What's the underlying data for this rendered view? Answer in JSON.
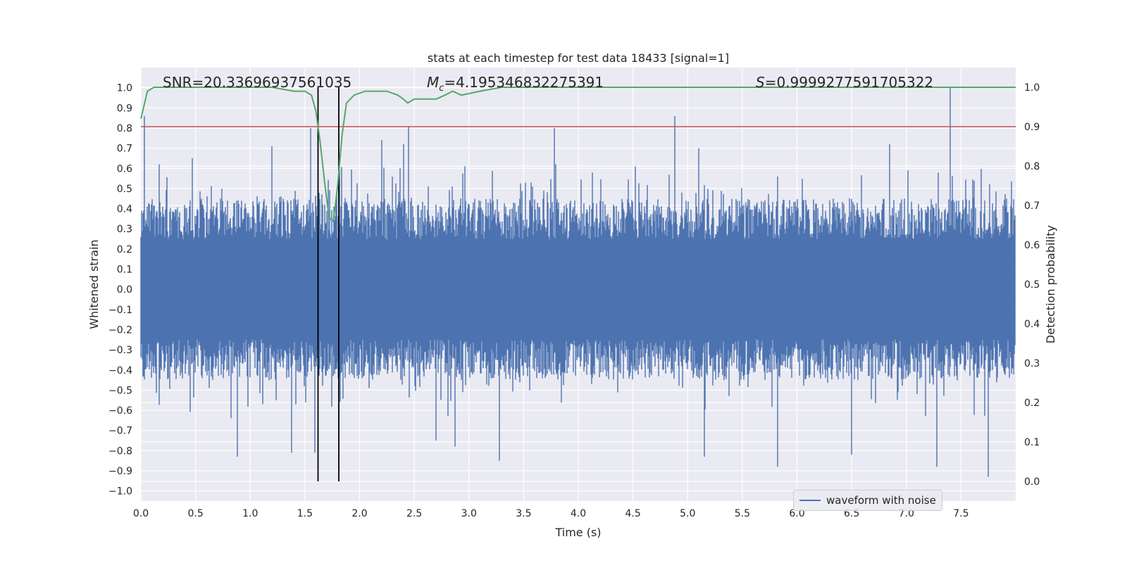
{
  "chart_data": {
    "type": "line",
    "title": "stats at each timestep for test data 18433 [signal=1]",
    "xlabel": "Time (s)",
    "ylabel": "Whitened strain",
    "y2label": "Detection probability",
    "xlim": [
      0,
      8
    ],
    "ylim": [
      -1.05,
      1.1
    ],
    "y2lim": [
      -0.05,
      1.05
    ],
    "x_ticks": [
      "0.0",
      "0.5",
      "1.0",
      "1.5",
      "2.0",
      "2.5",
      "3.0",
      "3.5",
      "4.0",
      "4.5",
      "5.0",
      "5.5",
      "6.0",
      "6.5",
      "7.0",
      "7.5"
    ],
    "y_ticks": [
      "1.0",
      "0.9",
      "0.8",
      "0.7",
      "0.6",
      "0.5",
      "0.4",
      "0.3",
      "0.2",
      "0.1",
      "0.0",
      "−0.1",
      "−0.2",
      "−0.3",
      "−0.4",
      "−0.5",
      "−0.6",
      "−0.7",
      "−0.8",
      "−0.9",
      "−1.0"
    ],
    "y2_ticks": [
      "1.0",
      "0.9",
      "0.8",
      "0.7",
      "0.6",
      "0.5",
      "0.4",
      "0.3",
      "0.2",
      "0.1",
      "0.0"
    ],
    "annotations": {
      "snr": "SNR=20.33696937561035",
      "mc_symbol": "M",
      "mc_sub": "c",
      "mc_value": "=4.195346832275391",
      "s_symbol": "S",
      "s_value": "=0.9999277591705322"
    },
    "threshold": 0.9,
    "event_window": [
      1.62,
      1.81
    ],
    "series": [
      {
        "name": "waveform with noise",
        "color": "#4c72b0",
        "envelope": {
          "typical_upper": 0.45,
          "typical_lower": -0.45,
          "peaks": [
            {
              "x": 0.03,
              "y": 0.86
            },
            {
              "x": 0.17,
              "y": 0.62
            },
            {
              "x": 0.47,
              "y": 0.65
            },
            {
              "x": 0.88,
              "y": -0.83
            },
            {
              "x": 1.2,
              "y": 0.71
            },
            {
              "x": 1.38,
              "y": -0.81
            },
            {
              "x": 1.55,
              "y": 0.8
            },
            {
              "x": 1.59,
              "y": -0.81
            },
            {
              "x": 1.68,
              "y": 0.42
            },
            {
              "x": 1.81,
              "y": -0.69
            },
            {
              "x": 2.2,
              "y": 0.74
            },
            {
              "x": 2.4,
              "y": 0.72
            },
            {
              "x": 2.45,
              "y": 0.81
            },
            {
              "x": 2.7,
              "y": -0.75
            },
            {
              "x": 2.87,
              "y": -0.78
            },
            {
              "x": 3.28,
              "y": -0.85
            },
            {
              "x": 3.78,
              "y": 0.8
            },
            {
              "x": 4.88,
              "y": 0.86
            },
            {
              "x": 5.1,
              "y": 0.7
            },
            {
              "x": 5.15,
              "y": -0.83
            },
            {
              "x": 5.82,
              "y": -0.88
            },
            {
              "x": 6.5,
              "y": -0.82
            },
            {
              "x": 6.85,
              "y": 0.72
            },
            {
              "x": 7.28,
              "y": -0.88
            },
            {
              "x": 7.4,
              "y": 1.0
            },
            {
              "x": 7.75,
              "y": -0.93
            }
          ]
        }
      },
      {
        "name": "Detection probability",
        "color": "#55a868",
        "axis": "right",
        "x": [
          0.0,
          0.06,
          0.12,
          0.3,
          0.6,
          0.9,
          1.2,
          1.4,
          1.5,
          1.56,
          1.6,
          1.64,
          1.68,
          1.72,
          1.76,
          1.8,
          1.84,
          1.88,
          1.95,
          2.05,
          2.15,
          2.25,
          2.35,
          2.4,
          2.44,
          2.5,
          2.58,
          2.7,
          2.78,
          2.85,
          2.93,
          3.1,
          3.3,
          3.6,
          4.0,
          4.5,
          4.7,
          5.0,
          6.0,
          7.0,
          8.0
        ],
        "y": [
          0.92,
          0.99,
          1.0,
          1.0,
          1.0,
          1.0,
          1.0,
          0.99,
          0.99,
          0.98,
          0.94,
          0.86,
          0.76,
          0.67,
          0.66,
          0.75,
          0.88,
          0.96,
          0.98,
          0.99,
          0.99,
          0.99,
          0.98,
          0.97,
          0.96,
          0.97,
          0.97,
          0.97,
          0.98,
          0.99,
          0.98,
          0.99,
          1.0,
          1.0,
          1.0,
          1.0,
          1.0,
          1.0,
          1.0,
          1.0,
          1.0
        ]
      }
    ],
    "threshold_color": "#c44e52",
    "grid": true,
    "legend": "lower-right",
    "legend_label": "waveform with noise"
  }
}
